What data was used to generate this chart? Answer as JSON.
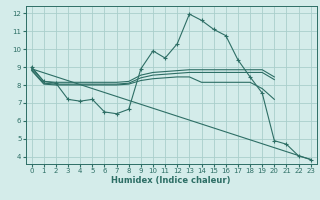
{
  "xlabel": "Humidex (Indice chaleur)",
  "background_color": "#d4ecea",
  "line_color": "#2d6e65",
  "grid_color": "#aacfcc",
  "xlim": [
    -0.5,
    23.5
  ],
  "ylim": [
    3.6,
    12.4
  ],
  "yticks": [
    4,
    5,
    6,
    7,
    8,
    9,
    10,
    11,
    12
  ],
  "xticks": [
    0,
    1,
    2,
    3,
    4,
    5,
    6,
    7,
    8,
    9,
    10,
    11,
    12,
    13,
    14,
    15,
    16,
    17,
    18,
    19,
    20,
    21,
    22,
    23
  ],
  "line_main": {
    "x": [
      0,
      1,
      2,
      3,
      4,
      5,
      6,
      7,
      8,
      9,
      10,
      11,
      12,
      13,
      14,
      15,
      16,
      17,
      18,
      19,
      20,
      21,
      22,
      23
    ],
    "y": [
      9.0,
      8.2,
      8.1,
      7.2,
      7.1,
      7.2,
      6.5,
      6.4,
      6.65,
      8.9,
      9.9,
      9.5,
      10.3,
      11.95,
      11.6,
      11.1,
      10.75,
      9.4,
      8.45,
      7.55,
      4.9,
      4.7,
      4.05,
      3.85
    ]
  },
  "line_upper": {
    "x": [
      0,
      1,
      2,
      3,
      4,
      5,
      6,
      7,
      8,
      9,
      10,
      11,
      12,
      13,
      14,
      15,
      16,
      17,
      18,
      19,
      20
    ],
    "y": [
      8.95,
      8.2,
      8.15,
      8.15,
      8.15,
      8.15,
      8.15,
      8.15,
      8.2,
      8.55,
      8.7,
      8.75,
      8.8,
      8.85,
      8.85,
      8.85,
      8.85,
      8.85,
      8.85,
      8.85,
      8.45
    ]
  },
  "line_middle": {
    "x": [
      0,
      1,
      2,
      3,
      4,
      5,
      6,
      7,
      8,
      9,
      10,
      11,
      12,
      13,
      14,
      15,
      16,
      17,
      18,
      19,
      20
    ],
    "y": [
      8.85,
      8.1,
      8.05,
      8.05,
      8.05,
      8.05,
      8.05,
      8.05,
      8.1,
      8.4,
      8.55,
      8.6,
      8.65,
      8.7,
      8.7,
      8.7,
      8.7,
      8.7,
      8.7,
      8.7,
      8.3
    ]
  },
  "line_lower": {
    "x": [
      0,
      1,
      2,
      3,
      4,
      5,
      6,
      7,
      8,
      9,
      10,
      11,
      12,
      13,
      14,
      15,
      16,
      17,
      18,
      19,
      20
    ],
    "y": [
      8.8,
      8.05,
      8.0,
      8.0,
      8.0,
      8.0,
      8.0,
      8.0,
      8.05,
      8.25,
      8.35,
      8.4,
      8.45,
      8.45,
      8.15,
      8.15,
      8.15,
      8.15,
      8.15,
      7.8,
      7.2
    ]
  },
  "line_trend": {
    "x": [
      0,
      23
    ],
    "y": [
      8.9,
      3.85
    ]
  }
}
